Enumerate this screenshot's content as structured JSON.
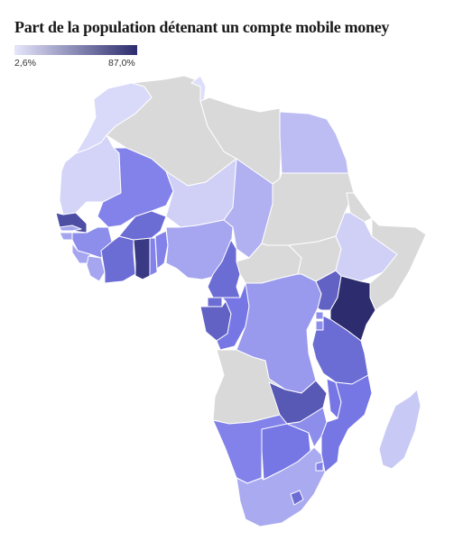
{
  "title": "Part de la population détenant un compte mobile money",
  "legend": {
    "min_label": "2,6%",
    "max_label": "87,0%",
    "min_value": 2.6,
    "max_value": 87.0,
    "color_low": "#e6e6fb",
    "color_high": "#2c2c6e",
    "no_data_color": "#d9d9d9"
  },
  "regions": [
    {
      "key": "morocco",
      "value": 8
    },
    {
      "key": "western-sahara",
      "value": null
    },
    {
      "key": "algeria",
      "value": null
    },
    {
      "key": "tunisia",
      "value": 6
    },
    {
      "key": "libya",
      "value": null
    },
    {
      "key": "egypt",
      "value": 20
    },
    {
      "key": "mauritania",
      "value": 10
    },
    {
      "key": "mali",
      "value": 45
    },
    {
      "key": "niger",
      "value": 12
    },
    {
      "key": "chad",
      "value": 25
    },
    {
      "key": "sudan",
      "value": null
    },
    {
      "key": "senegal",
      "value": 70
    },
    {
      "key": "gambia",
      "value": 30
    },
    {
      "key": "guinea-bissau",
      "value": 30
    },
    {
      "key": "guinea",
      "value": 40
    },
    {
      "key": "sierra-leone",
      "value": 30
    },
    {
      "key": "liberia",
      "value": 30
    },
    {
      "key": "cote-divoire",
      "value": 55
    },
    {
      "key": "burkina-faso",
      "value": 55
    },
    {
      "key": "ghana",
      "value": 80
    },
    {
      "key": "togo",
      "value": 45
    },
    {
      "key": "benin",
      "value": 45
    },
    {
      "key": "nigeria",
      "value": 30
    },
    {
      "key": "cameroon",
      "value": 55
    },
    {
      "key": "central-african-republic",
      "value": null
    },
    {
      "key": "south-sudan",
      "value": null
    },
    {
      "key": "ethiopia",
      "value": 12
    },
    {
      "key": "eritrea",
      "value": null
    },
    {
      "key": "somalia",
      "value": null
    },
    {
      "key": "equatorial-guinea",
      "value": 55
    },
    {
      "key": "gabon",
      "value": 60
    },
    {
      "key": "congo",
      "value": 50
    },
    {
      "key": "drc",
      "value": 35
    },
    {
      "key": "uganda",
      "value": 60
    },
    {
      "key": "kenya",
      "value": 87
    },
    {
      "key": "rwanda",
      "value": 40
    },
    {
      "key": "burundi",
      "value": 40
    },
    {
      "key": "tanzania",
      "value": 55
    },
    {
      "key": "angola",
      "value": null
    },
    {
      "key": "zambia",
      "value": 65
    },
    {
      "key": "malawi",
      "value": 50
    },
    {
      "key": "mozambique",
      "value": 50
    },
    {
      "key": "namibia",
      "value": 45
    },
    {
      "key": "botswana",
      "value": 50
    },
    {
      "key": "zimbabwe",
      "value": 40
    },
    {
      "key": "south-africa",
      "value": 28
    },
    {
      "key": "lesotho",
      "value": 55
    },
    {
      "key": "eswatini",
      "value": 45
    },
    {
      "key": "madagascar",
      "value": 15
    }
  ]
}
